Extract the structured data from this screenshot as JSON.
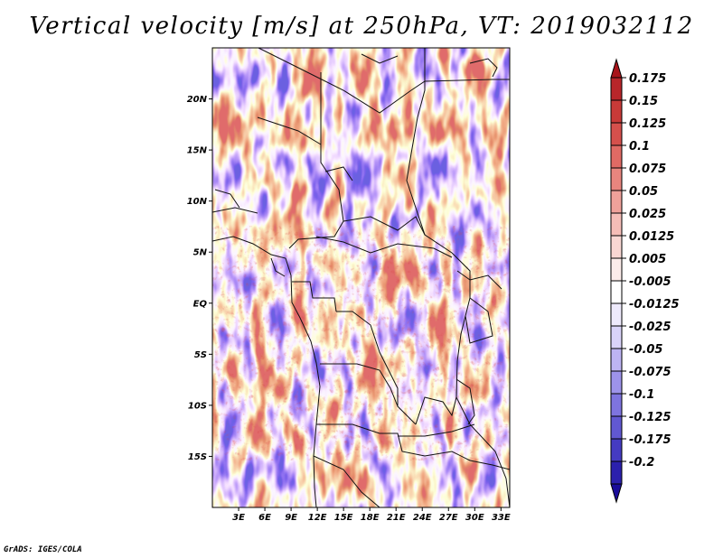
{
  "title": "Vertical velocity [m/s] at 250hPa, VT: 2019032112",
  "credit": "GrADS: IGES/COLA",
  "map": {
    "lon_range": [
      0,
      34
    ],
    "lat_range": [
      -20,
      25
    ],
    "lat_ticks": [
      {
        "lat": 20,
        "label": "20N"
      },
      {
        "lat": 15,
        "label": "15N"
      },
      {
        "lat": 10,
        "label": "10N"
      },
      {
        "lat": 5,
        "label": "5N"
      },
      {
        "lat": 0,
        "label": "EQ"
      },
      {
        "lat": -5,
        "label": "5S"
      },
      {
        "lat": -10,
        "label": "10S"
      },
      {
        "lat": -15,
        "label": "15S"
      }
    ],
    "lon_ticks": [
      {
        "lon": 3,
        "label": "3E"
      },
      {
        "lon": 6,
        "label": "6E"
      },
      {
        "lon": 9,
        "label": "9E"
      },
      {
        "lon": 12,
        "label": "12E"
      },
      {
        "lon": 15,
        "label": "15E"
      },
      {
        "lon": 18,
        "label": "18E"
      },
      {
        "lon": 21,
        "label": "21E"
      },
      {
        "lon": 24,
        "label": "24E"
      },
      {
        "lon": 27,
        "label": "27E"
      },
      {
        "lon": 30,
        "label": "30E"
      },
      {
        "lon": 33,
        "label": "33E"
      }
    ]
  },
  "colorbar": {
    "top_color": "#a8141a",
    "bottom_color": "#1a0c9a",
    "bins": [
      {
        "label": "0.175",
        "color": "#b8262a"
      },
      {
        "label": "0.15",
        "color": "#c83a38"
      },
      {
        "label": "0.125",
        "color": "#d5504c"
      },
      {
        "label": "0.1",
        "color": "#e06a64"
      },
      {
        "label": "0.075",
        "color": "#e8857e"
      },
      {
        "label": "0.05",
        "color": "#efa19a"
      },
      {
        "label": "0.025",
        "color": "#f5bdb7"
      },
      {
        "label": "0.0125",
        "color": "#f9d7d3"
      },
      {
        "label": "0.005",
        "color": "#fcecea"
      },
      {
        "label": "-0.005",
        "color": "#ffffff"
      },
      {
        "label": "-0.0125",
        "color": "#eeeafc"
      },
      {
        "label": "-0.025",
        "color": "#d9d3f9"
      },
      {
        "label": "-0.05",
        "color": "#bdb4f3"
      },
      {
        "label": "-0.075",
        "color": "#9d93ea"
      },
      {
        "label": "-0.1",
        "color": "#7e74df"
      },
      {
        "label": "-0.125",
        "color": "#6158d2"
      },
      {
        "label": "-0.175",
        "color": "#453bc2"
      },
      {
        "label": "-0.2",
        "color": "#2b20ad"
      }
    ]
  }
}
